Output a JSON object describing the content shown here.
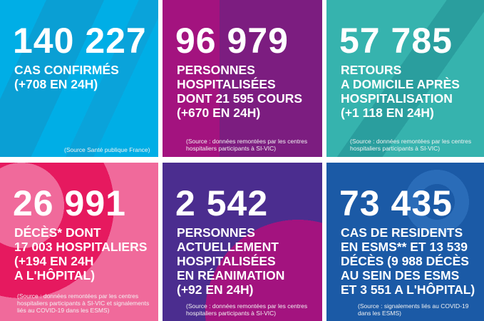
{
  "colors": {
    "cases": "#00aee6",
    "hospitalized": "#a3137f",
    "returns": "#36b3ae",
    "deaths": "#e6195f",
    "icu": "#4b2d8f",
    "esms": "#1b5aa6"
  },
  "tiles": [
    {
      "number": "140 227",
      "lines": [
        "CAS CONFIRMÉS",
        "(+708 EN 24H)"
      ],
      "source": [
        "(Source Santé publique France)"
      ]
    },
    {
      "number": "96 979",
      "lines": [
        "PERSONNES",
        "HOSPITALISÉES",
        "DONT 21 595 COURS",
        "(+670 EN 24H)"
      ],
      "source": [
        "(Source : données remontées par les centres",
        "hospitaliers participants à SI-VIC)"
      ]
    },
    {
      "number": "57 785",
      "lines": [
        "RETOURS",
        "A DOMICILE APRÈS",
        "HOSPITALISATION",
        "(+1 118 EN 24H)"
      ],
      "source": [
        "(Source : données remontées par les centres",
        "hospitaliers participants à SI-VIC)"
      ]
    },
    {
      "number": "26 991",
      "lines": [
        "DÉCÈS* DONT",
        "17 003 HOSPITALIERS",
        "(+194 EN 24H",
        "A L'HÔPITAL)"
      ],
      "source": [
        "(Source : données remontées par les centres",
        "hospitaliers participants à SI-VIC et signalements",
        "liés au COVID-19 dans les ESMS)"
      ]
    },
    {
      "number": "2 542",
      "lines": [
        "PERSONNES",
        "ACTUELLEMENT",
        "HOSPITALISÉES",
        "EN RÉANIMATION",
        "(+92 EN 24H)"
      ],
      "source": [
        "(Source : données remontées par les centres",
        "hospitaliers participants à SI-VIC)"
      ]
    },
    {
      "number": "73 435",
      "lines": [
        "CAS DE RESIDENTS",
        "EN ESMS** ET 13 539",
        "DÉCÈS (9 988 DÉCÈS",
        "AU SEIN DES ESMS",
        "ET 3 551 A L'HÔPITAL)"
      ],
      "source": [
        "(Source : signalements liés au COVID-19",
        "dans les ESMS)"
      ]
    }
  ]
}
